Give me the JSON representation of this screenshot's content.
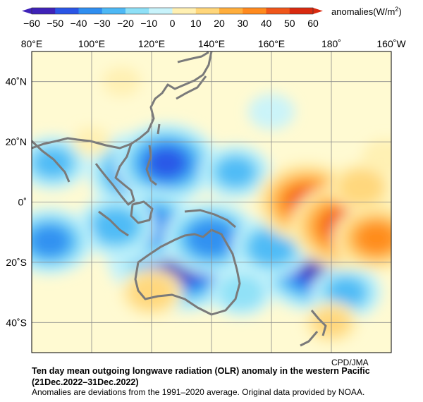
{
  "colorbar": {
    "ticks": [
      "−60",
      "−50",
      "−40",
      "−30",
      "−20",
      "−10",
      "0",
      "10",
      "20",
      "30",
      "40",
      "50",
      "60"
    ],
    "colors": [
      "#3f22b8",
      "#2a55e6",
      "#2f8ef0",
      "#4db8f5",
      "#8ee0f7",
      "#c8f3fb",
      "#fffad2",
      "#fff0b2",
      "#ffd67a",
      "#ffae3c",
      "#ff8a1e",
      "#f0561a",
      "#d92a10"
    ],
    "label": "anomalies(W/m",
    "label_sup": "2",
    "label_close": ")"
  },
  "map": {
    "lon_labels": [
      "80°E",
      "100°E",
      "120°E",
      "140°E",
      "160°E",
      "180˚",
      "160˚W"
    ],
    "lat_labels": [
      "40˚N",
      "20˚N",
      "0˚",
      "20˚S",
      "40˚S"
    ],
    "lon_range": [
      80,
      200
    ],
    "lat_range": [
      -50,
      50
    ],
    "grid": true,
    "coastline_color": "#7a7a7a"
  },
  "credit": "CPD/JMA",
  "caption": {
    "title": "Ten day mean outgoing longwave radiation (OLR) anomaly in the western Pacific",
    "period": "(21Dec.2022–31Dec.2022)",
    "note": "Anomalies are deviations from the 1991–2020 average. Original data provided by NOAA."
  },
  "anomalies": [
    {
      "lon": 125,
      "lat": -18,
      "value": -60
    },
    {
      "lon": 130,
      "lat": -20,
      "value": -65
    },
    {
      "lon": 175,
      "lat": -21,
      "value": -60
    },
    {
      "lon": 116,
      "lat": 10,
      "value": -50
    },
    {
      "lon": 125,
      "lat": 13,
      "value": -50
    },
    {
      "lon": 120,
      "lat": -8,
      "value": -45
    },
    {
      "lon": 108,
      "lat": -8,
      "value": -35
    },
    {
      "lon": 140,
      "lat": -12,
      "value": -45
    },
    {
      "lon": 160,
      "lat": -15,
      "value": -35
    },
    {
      "lon": 185,
      "lat": -30,
      "value": -30
    },
    {
      "lon": 148,
      "lat": 10,
      "value": -30
    },
    {
      "lon": 86,
      "lat": -13,
      "value": -40
    },
    {
      "lon": 87,
      "lat": 13,
      "value": -30
    },
    {
      "lon": 150,
      "lat": -30,
      "value": -25
    },
    {
      "lon": 160,
      "lat": 30,
      "value": -15
    },
    {
      "lon": 172,
      "lat": 0,
      "value": 50
    },
    {
      "lon": 185,
      "lat": -8,
      "value": 55
    },
    {
      "lon": 195,
      "lat": -12,
      "value": 40
    },
    {
      "lon": 190,
      "lat": 5,
      "value": 25
    },
    {
      "lon": 198,
      "lat": 15,
      "value": 15
    },
    {
      "lon": 120,
      "lat": -30,
      "value": 25
    },
    {
      "lon": 180,
      "lat": -40,
      "value": 20
    },
    {
      "lon": 100,
      "lat": 20,
      "value": 10
    },
    {
      "lon": 110,
      "lat": 40,
      "value": 10
    }
  ]
}
